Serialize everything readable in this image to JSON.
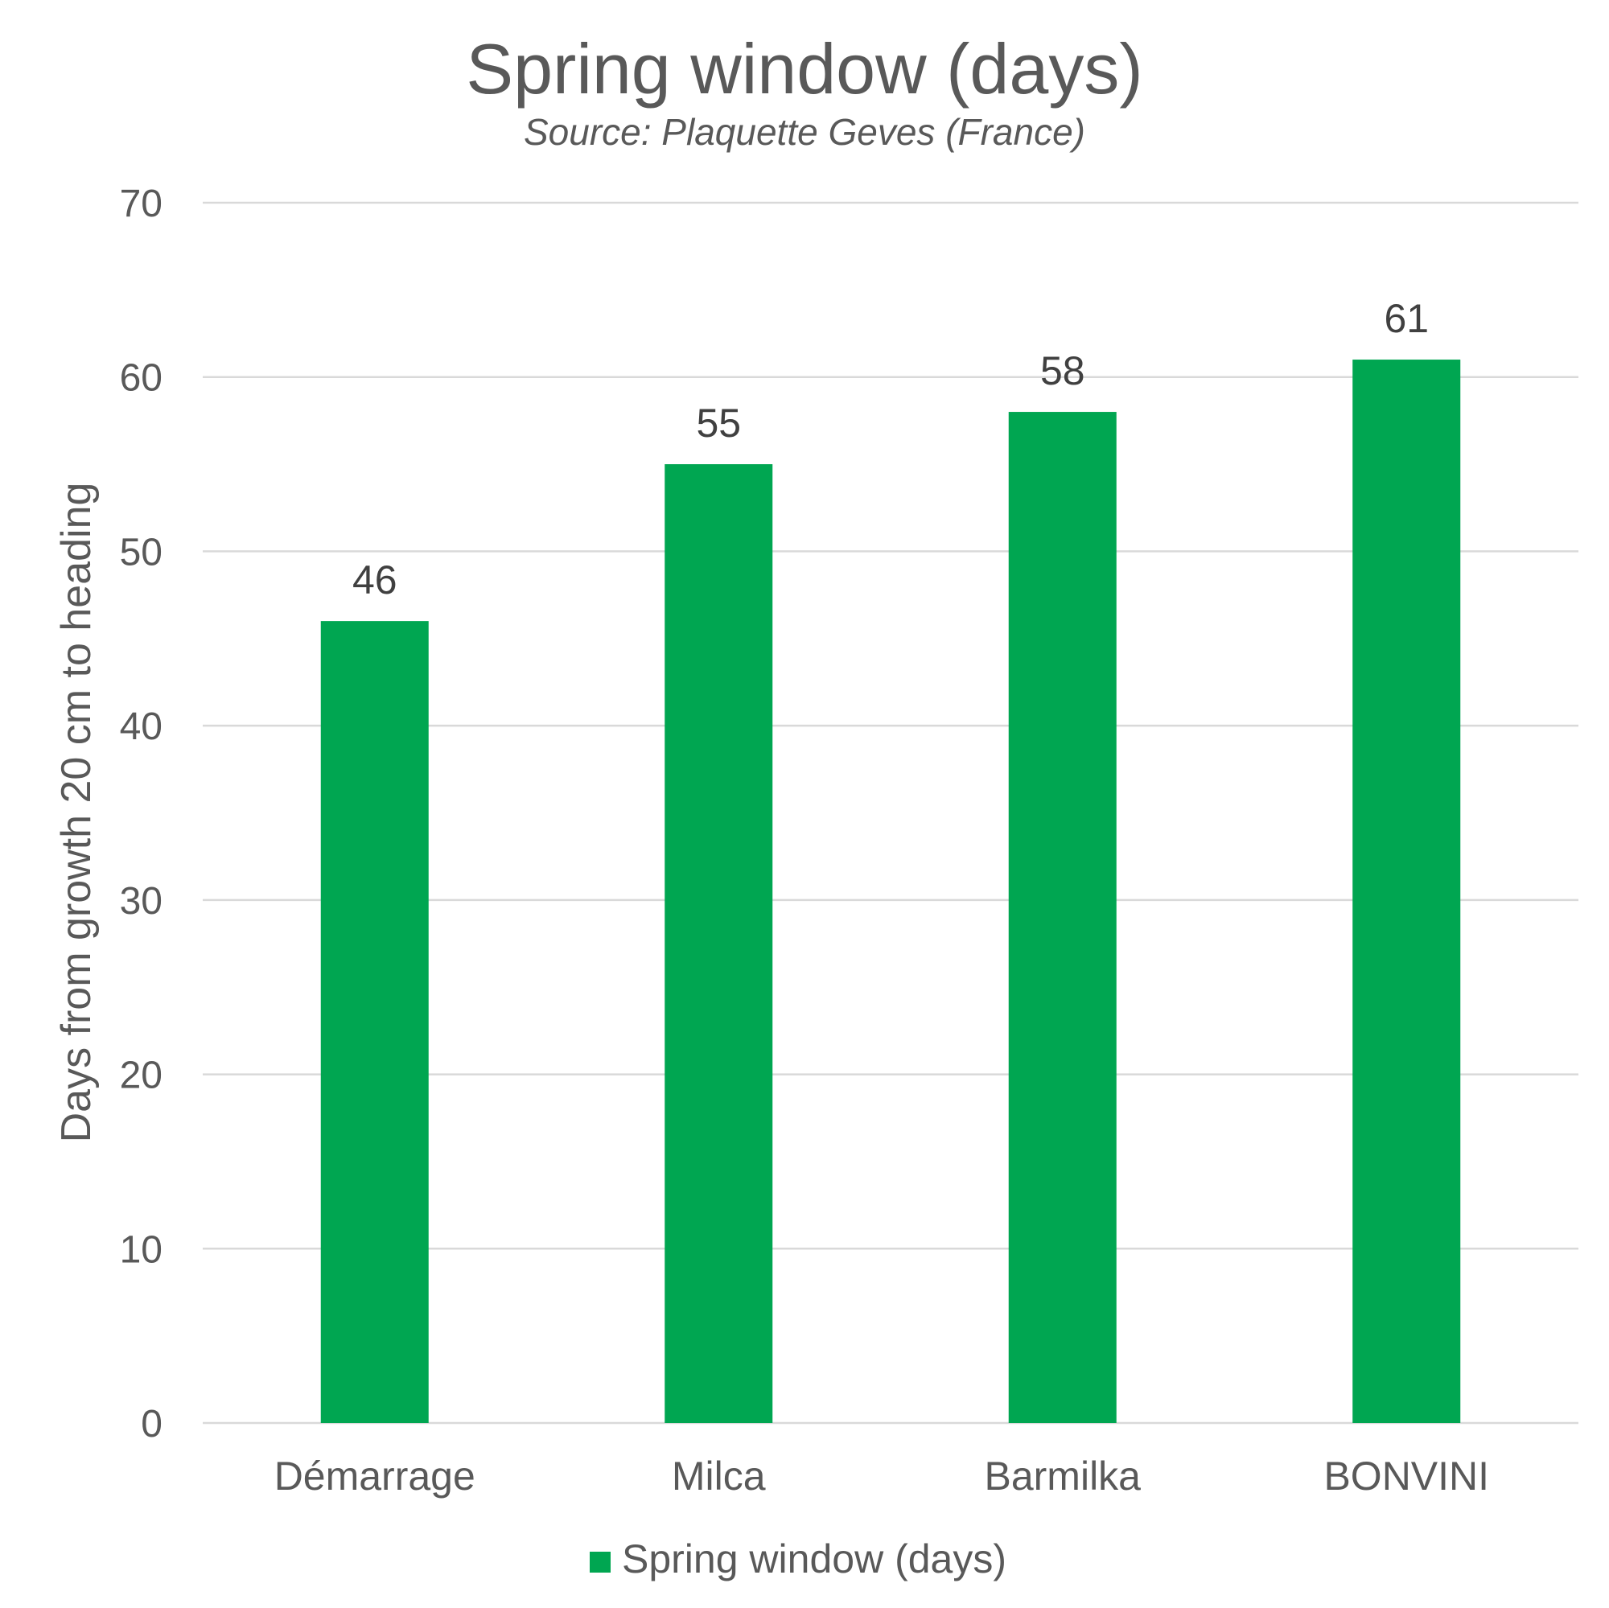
{
  "chart_data": {
    "type": "bar",
    "title": "Spring window (days)",
    "subtitle": "Source: Plaquette Geves (France)",
    "xlabel": "",
    "ylabel": "Days from growth 20 cm to heading",
    "categories": [
      "Démarrage",
      "Milca",
      "Barmilka",
      "BONVINI"
    ],
    "series": [
      {
        "name": "Spring window (days)",
        "values": [
          46,
          55,
          58,
          61
        ],
        "color": "#00a651"
      }
    ],
    "ylim": [
      0,
      70
    ],
    "yticks": [
      0,
      10,
      20,
      30,
      40,
      50,
      60,
      70
    ],
    "grid": true,
    "legend": "bottom",
    "data_labels": true
  }
}
